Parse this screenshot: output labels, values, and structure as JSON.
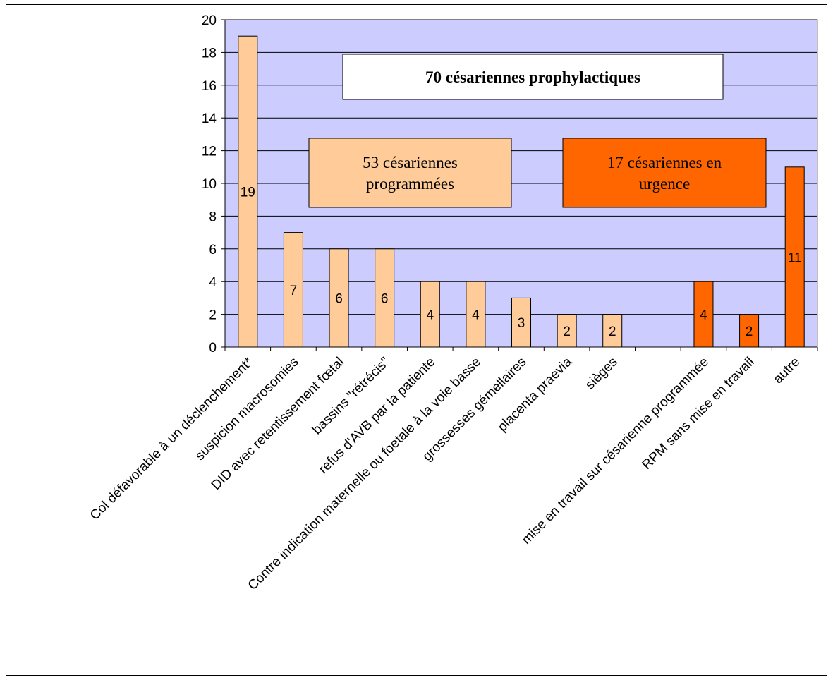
{
  "chart_data": {
    "type": "bar",
    "title": "",
    "xlabel": "",
    "ylabel": "",
    "ylim": [
      0,
      20
    ],
    "y_ticks": [
      0,
      2,
      4,
      6,
      8,
      10,
      12,
      14,
      16,
      18,
      20
    ],
    "grid": true,
    "background_color": "#ccccff",
    "colors": {
      "programmed": "#ffcc99",
      "urgent": "#ff6600"
    },
    "categories": [
      "Col défavorable à un déclenchement*",
      "suspicion macrosomies",
      "DID avec retentissement fœtal",
      "bassins \"rétrécis\"",
      "refus d'AVB par la patiente",
      "Contre indication maternelle ou foetale à la voie basse",
      "grossesses gémellaires",
      "placenta praevia",
      "sièges",
      "",
      "mise en travail sur césarienne programmée",
      "RPM sans mise en travail",
      "autre"
    ],
    "values": [
      19,
      7,
      6,
      6,
      4,
      4,
      3,
      2,
      2,
      null,
      4,
      2,
      11
    ],
    "groups": [
      "programmed",
      "programmed",
      "programmed",
      "programmed",
      "programmed",
      "programmed",
      "programmed",
      "programmed",
      "programmed",
      "",
      "urgent",
      "urgent",
      "urgent"
    ],
    "annotations": [
      {
        "id": "total",
        "lines": [
          "70 césariennes prophylactiques"
        ],
        "bold": true,
        "fill": "#ffffff"
      },
      {
        "id": "programmed",
        "lines": [
          "53 césariennes",
          "programmées"
        ],
        "bold": false,
        "fill": "#ffcc99"
      },
      {
        "id": "urgent",
        "lines": [
          "17 césariennes en",
          "urgence"
        ],
        "bold": false,
        "fill": "#ff6600"
      }
    ]
  }
}
